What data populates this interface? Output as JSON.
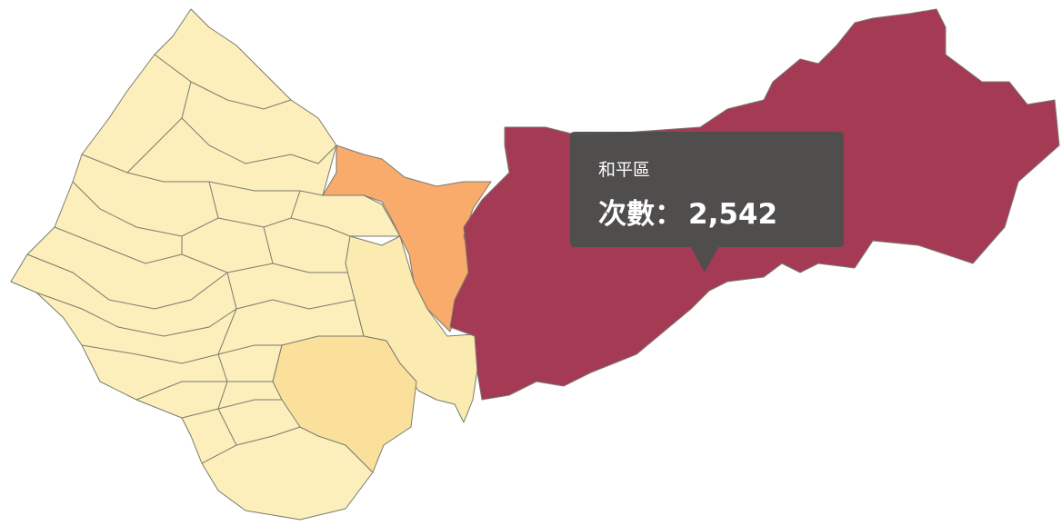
{
  "tooltip": {
    "title": "和平區",
    "label": "次數：",
    "value": {
      "value": 2542,
      "label": "2,542"
    }
  }
}
